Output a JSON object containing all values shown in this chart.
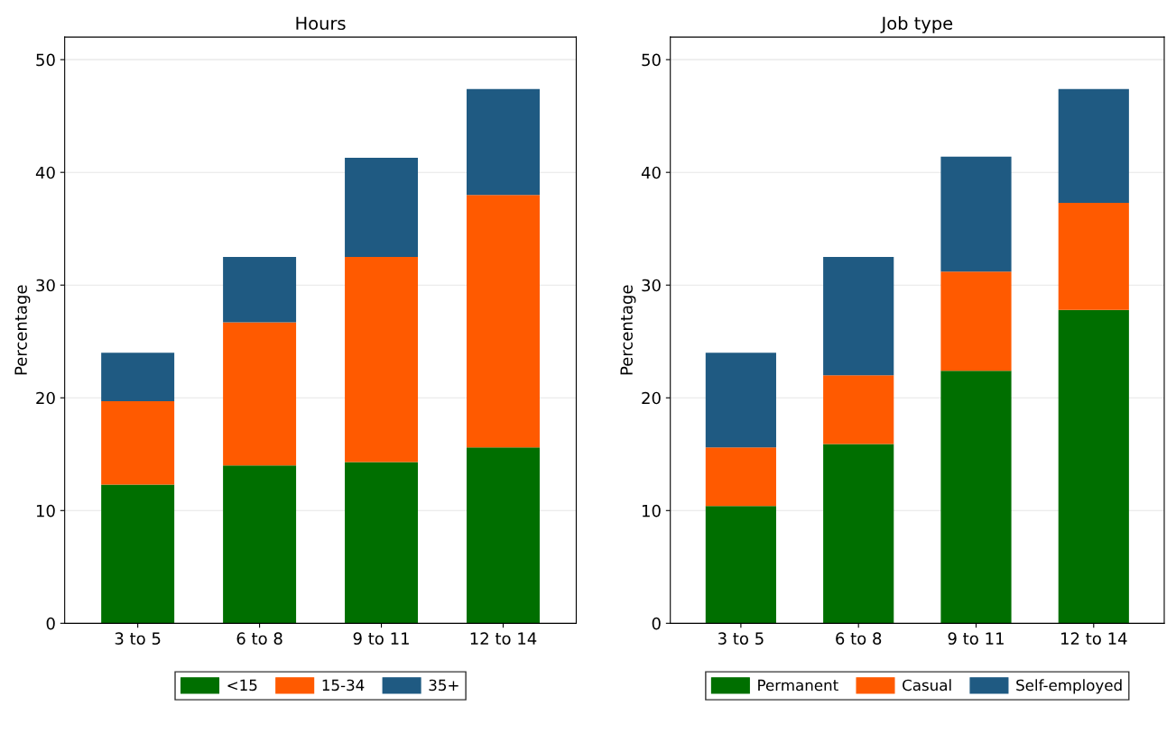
{
  "chart_data": [
    {
      "type": "bar",
      "title": "Hours",
      "ylabel": "Percentage",
      "categories": [
        "3 to 5",
        "6 to 8",
        "9 to 11",
        "12 to 14"
      ],
      "stacked": true,
      "ylim": [
        0,
        52
      ],
      "yticks": [
        0,
        10,
        20,
        30,
        40,
        50
      ],
      "grid": "y",
      "legend": "bottom",
      "series": [
        {
          "name": "<15",
          "color": "#006f00",
          "values": [
            12.3,
            14.0,
            14.3,
            15.6
          ]
        },
        {
          "name": "15-34",
          "color": "#ff5a00",
          "values": [
            7.4,
            12.7,
            18.2,
            22.4
          ]
        },
        {
          "name": "35+",
          "color": "#1f5a82",
          "values": [
            4.3,
            5.8,
            8.8,
            9.4
          ]
        }
      ]
    },
    {
      "type": "bar",
      "title": "Job type",
      "ylabel": "Percentage",
      "categories": [
        "3 to 5",
        "6 to 8",
        "9 to 11",
        "12 to 14"
      ],
      "stacked": true,
      "ylim": [
        0,
        52
      ],
      "yticks": [
        0,
        10,
        20,
        30,
        40,
        50
      ],
      "grid": "y",
      "legend": "bottom",
      "series": [
        {
          "name": "Permanent",
          "color": "#006f00",
          "values": [
            10.4,
            15.9,
            22.4,
            27.8
          ]
        },
        {
          "name": "Casual",
          "color": "#ff5a00",
          "values": [
            5.2,
            6.1,
            8.8,
            9.5
          ]
        },
        {
          "name": "Self-employed",
          "color": "#1f5a82",
          "values": [
            8.4,
            10.5,
            10.2,
            10.1
          ]
        }
      ]
    }
  ]
}
